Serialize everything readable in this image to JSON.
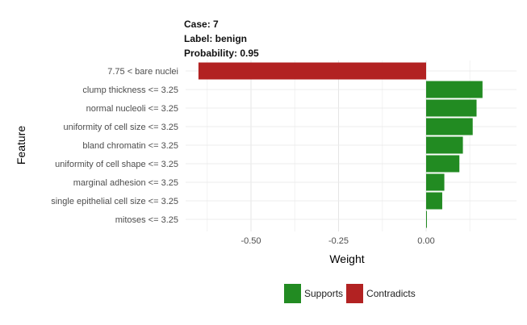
{
  "header": {
    "case": "Case: 7",
    "label": "Label: benign",
    "probability": "Probability: 0.95"
  },
  "chart_data": {
    "type": "bar",
    "orientation": "horizontal",
    "xlabel": "Weight",
    "ylabel": "Feature",
    "xlim": [
      -0.65,
      0.18
    ],
    "xticks": [
      -0.5,
      -0.25,
      0.0
    ],
    "xtick_labels": [
      "-0.50",
      "-0.25",
      "0.00"
    ],
    "grid": true,
    "legend_position": "bottom",
    "categories": [
      "7.75 < bare nuclei",
      "clump thickness <= 3.25",
      "normal nucleoli <= 3.25",
      "uniformity of cell size <= 3.25",
      "bland chromatin <= 3.25",
      "uniformity of cell shape <= 3.25",
      "marginal adhesion <= 3.25",
      "single epithelial cell size <= 3.25",
      "mitoses <= 3.25"
    ],
    "values": [
      -0.65,
      0.161,
      0.144,
      0.133,
      0.105,
      0.095,
      0.052,
      0.046,
      0.002
    ],
    "series": [
      {
        "name": "Supports",
        "color": "#228B22"
      },
      {
        "name": "Contradicts",
        "color": "#B22222"
      }
    ]
  },
  "legend": {
    "supports_label": "Supports",
    "contradicts_label": "Contradicts"
  }
}
